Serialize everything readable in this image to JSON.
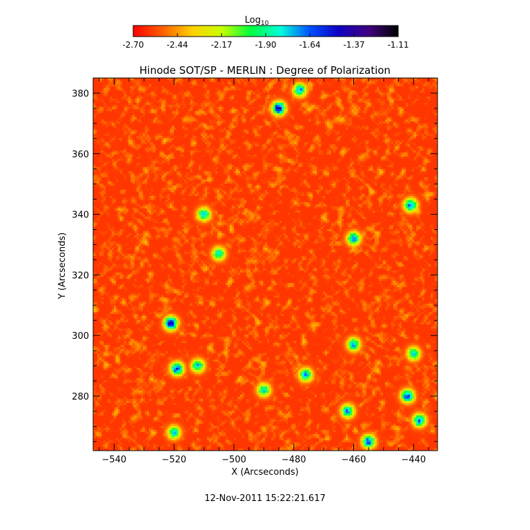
{
  "colorbar": {
    "label_main": "Log",
    "label_sub": "10",
    "ticks": [
      "-2.70",
      "-2.44",
      "-2.17",
      "-1.90",
      "-1.64",
      "-1.37",
      "-1.11"
    ],
    "range": [
      -2.7,
      -1.11
    ],
    "colors": [
      "#ff0000",
      "#ff6000",
      "#ffd000",
      "#c8ff00",
      "#00ff40",
      "#00ffd8",
      "#0050ff",
      "#1000c0",
      "#400080",
      "#000000"
    ]
  },
  "chart_data": {
    "type": "heatmap",
    "title": "Hinode SOT/SP - MERLIN : Degree of Polarization",
    "xlabel": "X (Arcseconds)",
    "ylabel": "Y (Arcseconds)",
    "xlim": [
      -547,
      -432
    ],
    "ylim": [
      262,
      385
    ],
    "xticks": [
      -540,
      -520,
      -500,
      -480,
      -460,
      -440
    ],
    "yticks": [
      280,
      300,
      320,
      340,
      360,
      380
    ],
    "value_scale": "log10",
    "value_range": [
      -2.7,
      -1.11
    ],
    "background_level": -2.6,
    "features": [
      {
        "x": -521,
        "y": 304,
        "peak": -1.37
      },
      {
        "x": -485,
        "y": 375,
        "peak": -1.4
      },
      {
        "x": -519,
        "y": 289,
        "peak": -1.55
      },
      {
        "x": -442,
        "y": 280,
        "peak": -1.55
      },
      {
        "x": -476,
        "y": 287,
        "peak": -1.7
      },
      {
        "x": -441,
        "y": 343,
        "peak": -1.6
      },
      {
        "x": -460,
        "y": 332,
        "peak": -1.65
      },
      {
        "x": -510,
        "y": 340,
        "peak": -1.75
      },
      {
        "x": -455,
        "y": 265,
        "peak": -1.6
      },
      {
        "x": -462,
        "y": 275,
        "peak": -1.7
      },
      {
        "x": -478,
        "y": 381,
        "peak": -1.7
      },
      {
        "x": -512,
        "y": 290,
        "peak": -1.75
      },
      {
        "x": -505,
        "y": 327,
        "peak": -1.8
      },
      {
        "x": -460,
        "y": 297,
        "peak": -1.75
      },
      {
        "x": -440,
        "y": 294,
        "peak": -1.8
      },
      {
        "x": -438,
        "y": 272,
        "peak": -1.65
      },
      {
        "x": -520,
        "y": 268,
        "peak": -1.8
      },
      {
        "x": -490,
        "y": 282,
        "peak": -1.8
      }
    ]
  },
  "footer": {
    "timestamp": "12-Nov-2011 15:22:21.617"
  }
}
